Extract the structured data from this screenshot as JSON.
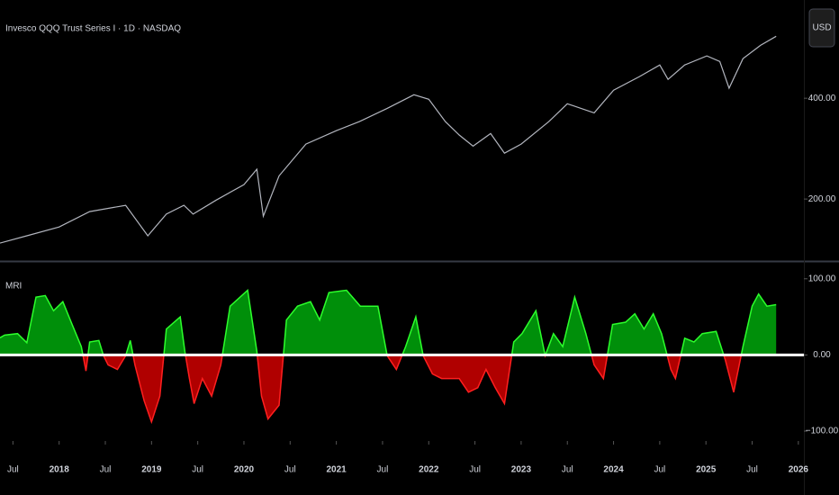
{
  "chart_data": [
    {
      "type": "line",
      "title": "Invesco QQQ Trust Series I · 1D · NASDAQ",
      "currency": "USD",
      "color": "#b2b5be",
      "x": [
        2017.36,
        2017.65,
        2018.0,
        2018.33,
        2018.72,
        2018.96,
        2019.16,
        2019.35,
        2019.45,
        2019.7,
        2020.0,
        2020.14,
        2020.21,
        2020.38,
        2020.67,
        2021.0,
        2021.25,
        2021.55,
        2021.84,
        2022.0,
        2022.18,
        2022.33,
        2022.48,
        2022.67,
        2022.82,
        2023.0,
        2023.3,
        2023.5,
        2023.79,
        2024.0,
        2024.28,
        2024.5,
        2024.59,
        2024.77,
        2025.01,
        2025.15,
        2025.25,
        2025.4,
        2025.59,
        2025.76
      ],
      "values": [
        112.5,
        127,
        144.6,
        175,
        187.5,
        127,
        170,
        187.5,
        170,
        198,
        228.6,
        259,
        166,
        246,
        309,
        335.7,
        353.6,
        380,
        407,
        398,
        353.6,
        327,
        305,
        330,
        291,
        309,
        353.6,
        389,
        371,
        416,
        443,
        466,
        437.5,
        466,
        484,
        473,
        420,
        478.6,
        505,
        523
      ],
      "xlim": [
        2017.36,
        2026.06
      ],
      "ylim": [
        77,
        595
      ],
      "yticks": [
        {
          "value": 200,
          "label": "200.00"
        },
        {
          "value": 400,
          "label": "400.00"
        }
      ]
    },
    {
      "type": "area",
      "title": "MRI",
      "pos_color": "#008f0a",
      "neg_color": "#b00000",
      "pos_line": "#2bff2b",
      "neg_line": "#ff1f1f",
      "baseline": 0,
      "baseline_color": "#ffffff",
      "x": [
        2017.36,
        2017.41,
        2017.55,
        2017.65,
        2017.75,
        2017.85,
        2017.94,
        2018.04,
        2018.14,
        2018.24,
        2018.29,
        2018.33,
        2018.43,
        2018.48,
        2018.53,
        2018.63,
        2018.72,
        2018.77,
        2018.82,
        2018.92,
        2019.0,
        2019.09,
        2019.16,
        2019.31,
        2019.36,
        2019.41,
        2019.46,
        2019.55,
        2019.65,
        2019.75,
        2019.85,
        2020.04,
        2020.14,
        2020.19,
        2020.26,
        2020.38,
        2020.46,
        2020.58,
        2020.72,
        2020.82,
        2020.92,
        2021.11,
        2021.26,
        2021.45,
        2021.55,
        2021.65,
        2021.75,
        2021.86,
        2021.94,
        2022.04,
        2022.14,
        2022.33,
        2022.43,
        2022.53,
        2022.62,
        2022.72,
        2022.82,
        2022.92,
        2023.01,
        2023.16,
        2023.26,
        2023.35,
        2023.45,
        2023.58,
        2023.7,
        2023.79,
        2023.89,
        2023.99,
        2024.13,
        2024.23,
        2024.33,
        2024.43,
        2024.52,
        2024.62,
        2024.67,
        2024.77,
        2024.87,
        2024.96,
        2025.11,
        2025.21,
        2025.3,
        2025.4,
        2025.5,
        2025.57,
        2025.66,
        2025.76
      ],
      "values": [
        22.5,
        26,
        28,
        16,
        76,
        78,
        58,
        70,
        40,
        11,
        -21,
        17,
        19,
        -1,
        -13,
        -19,
        -1,
        19,
        -13,
        -60,
        -88,
        -54,
        34,
        50,
        5,
        -31,
        -64,
        -31,
        -54,
        -13,
        64,
        85,
        5,
        -54,
        -84,
        -66,
        46,
        64,
        70,
        46,
        82,
        85,
        64,
        64,
        -1,
        -19,
        11,
        50,
        -1,
        -25,
        -31,
        -31,
        -49,
        -43,
        -19,
        -43,
        -64,
        17,
        28,
        58,
        -1,
        28,
        11,
        76,
        28,
        -13,
        -31,
        40,
        43,
        54,
        34,
        54,
        28,
        -19,
        -31,
        22,
        17,
        28,
        31,
        -7,
        -49,
        11,
        64,
        80,
        64,
        66
      ],
      "xlim": [
        2017.36,
        2026.06
      ],
      "ylim": [
        -113,
        121
      ],
      "yticks": [
        {
          "value": -100,
          "label": "−100.00"
        },
        {
          "value": 0,
          "label": "0.00"
        },
        {
          "value": 100,
          "label": "100.00"
        }
      ],
      "xticks": [
        {
          "value": 2017.5,
          "label": "Jul"
        },
        2018,
        {
          "value": 2018.5,
          "label": "Jul"
        },
        2019,
        {
          "value": 2019.5,
          "label": "Jul"
        },
        2020,
        {
          "value": 2020.5,
          "label": "Jul"
        },
        2021,
        {
          "value": 2021.5,
          "label": "Jul"
        },
        2022,
        {
          "value": 2022.5,
          "label": "Jul"
        },
        2023,
        {
          "value": 2023.5,
          "label": "Jul"
        },
        2024,
        {
          "value": 2024.5,
          "label": "Jul"
        },
        2025,
        {
          "value": 2025.5,
          "label": "Jul"
        },
        2026
      ]
    }
  ]
}
